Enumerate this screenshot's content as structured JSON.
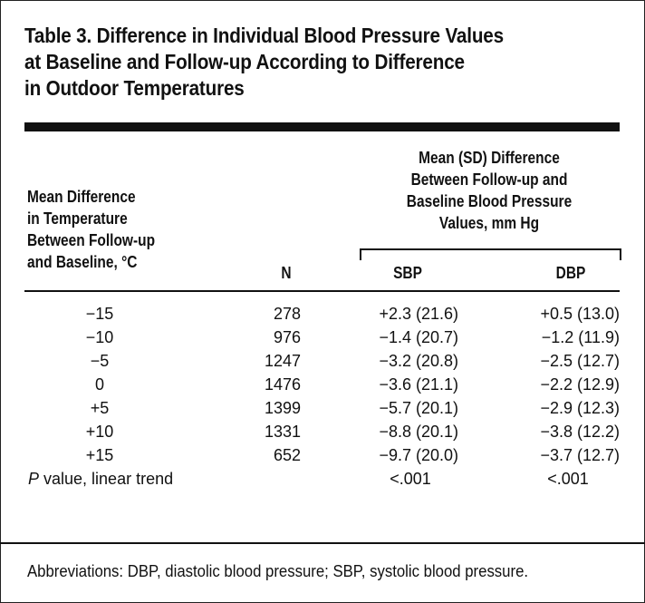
{
  "table": {
    "title_lines": [
      "Table 3. Difference in Individual Blood Pressure Values",
      "at Baseline and Follow-up According to Difference",
      "in Outdoor Temperatures"
    ],
    "header": {
      "temp_lines": [
        "Mean Difference",
        "in Temperature",
        "Between Follow-up",
        "and Baseline, °C"
      ],
      "n": "N",
      "mean_lines": [
        "Mean (SD) Difference",
        "Between Follow-up and",
        "Baseline Blood Pressure",
        "Values, mm Hg"
      ],
      "sbp": "SBP",
      "dbp": "DBP"
    },
    "rows": [
      {
        "temp": "−15",
        "n": "278",
        "sbp": "+2.3 (21.6)",
        "dbp": "+0.5 (13.0)"
      },
      {
        "temp": "−10",
        "n": "976",
        "sbp": "−1.4 (20.7)",
        "dbp": "−1.2 (11.9)"
      },
      {
        "temp": "−5",
        "n": "1247",
        "sbp": "−3.2 (20.8)",
        "dbp": "−2.5 (12.7)"
      },
      {
        "temp": "0",
        "n": "1476",
        "sbp": "−3.6 (21.1)",
        "dbp": "−2.2 (12.9)"
      },
      {
        "temp": "+5",
        "n": "1399",
        "sbp": "−5.7 (20.1)",
        "dbp": "−2.9 (12.3)"
      },
      {
        "temp": "+10",
        "n": "1331",
        "sbp": "−8.8 (20.1)",
        "dbp": "−3.8 (12.2)"
      },
      {
        "temp": "+15",
        "n": "652",
        "sbp": "−9.7 (20.0)",
        "dbp": "−3.7 (12.7)"
      }
    ],
    "p_row": {
      "p_letter": "P",
      "label_rest": " value, linear trend",
      "sbp": "<.001",
      "dbp": "<.001"
    },
    "footnote": "Abbreviations: DBP, diastolic blood pressure; SBP, systolic blood pressure."
  }
}
